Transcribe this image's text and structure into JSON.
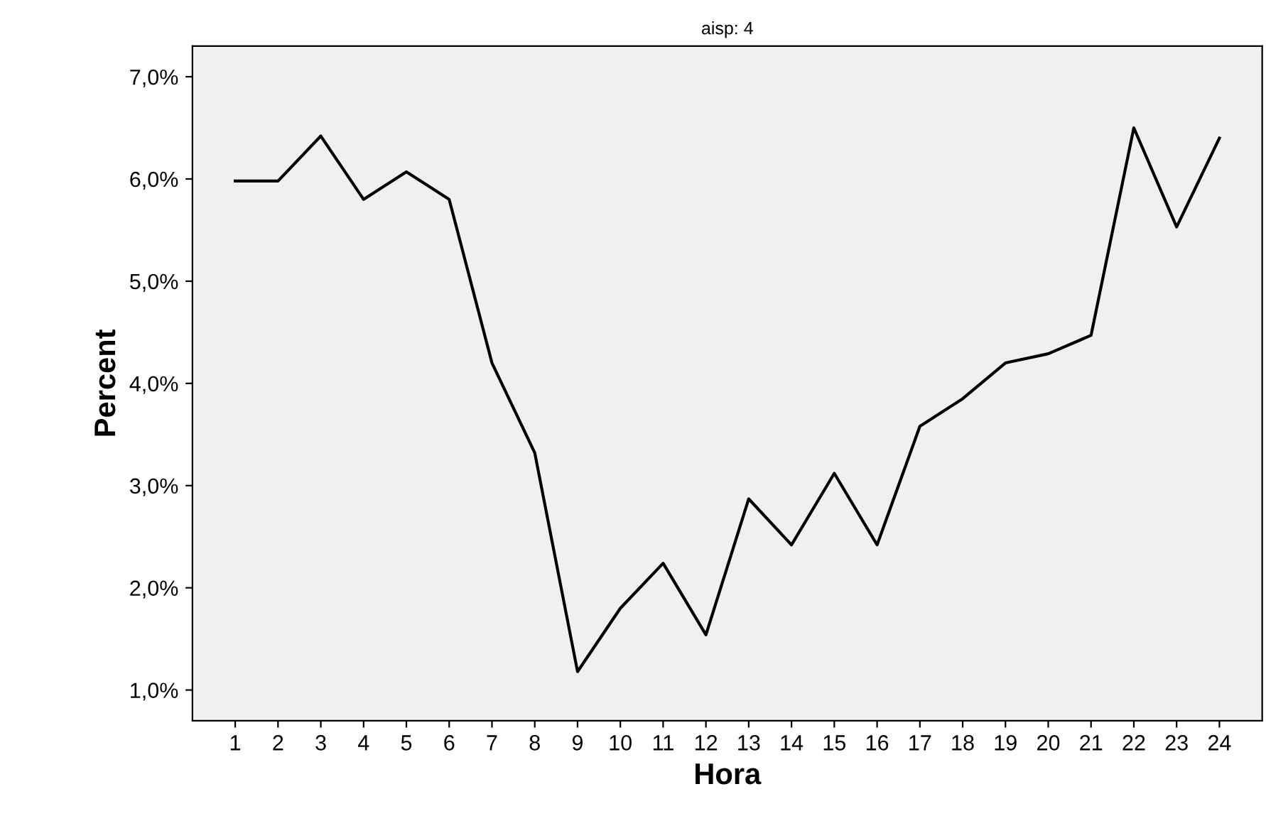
{
  "chart_data": {
    "type": "line",
    "title": "aisp: 4",
    "xlabel": "Hora",
    "ylabel": "Percent",
    "categories": [
      "1",
      "2",
      "3",
      "4",
      "5",
      "6",
      "7",
      "8",
      "9",
      "10",
      "11",
      "12",
      "13",
      "14",
      "15",
      "16",
      "17",
      "18",
      "19",
      "20",
      "21",
      "22",
      "23",
      "24"
    ],
    "series": [
      {
        "color": "#000000",
        "values": [
          5.98,
          5.98,
          6.42,
          5.8,
          6.07,
          5.8,
          4.2,
          3.32,
          1.18,
          1.8,
          2.24,
          1.54,
          2.87,
          2.42,
          3.12,
          2.42,
          3.58,
          3.85,
          4.2,
          4.29,
          4.47,
          6.5,
          5.53,
          6.4
        ]
      }
    ],
    "ylim": [
      0.7,
      7.3
    ],
    "yticks": [
      {
        "value": 1,
        "label": "1,0%"
      },
      {
        "value": 2,
        "label": "2,0%"
      },
      {
        "value": 3,
        "label": "3,0%"
      },
      {
        "value": 4,
        "label": "4,0%"
      },
      {
        "value": 5,
        "label": "5,0%"
      },
      {
        "value": 6,
        "label": "6,0%"
      },
      {
        "value": 7,
        "label": "7,0%"
      }
    ],
    "grid": false,
    "marker": "none",
    "line_style": "solid"
  }
}
